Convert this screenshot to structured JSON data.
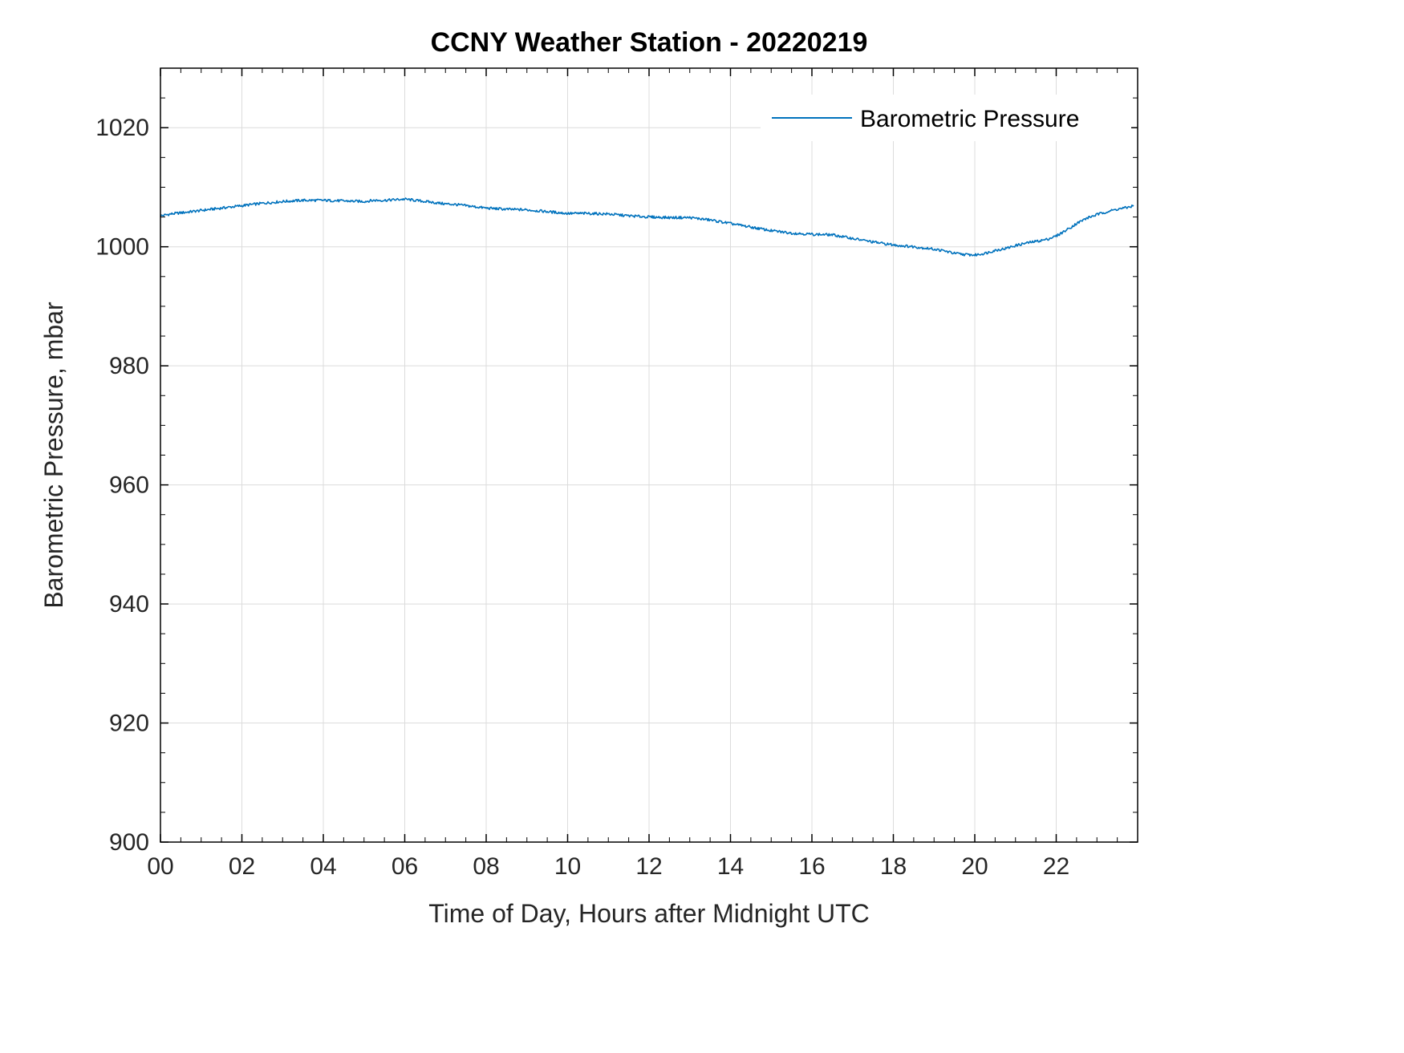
{
  "chart_data": {
    "type": "line",
    "title": "CCNY Weather Station - 20220219",
    "xlabel": "Time of Day, Hours after Midnight UTC",
    "ylabel": "Barometric Pressure, mbar",
    "xlim": [
      0,
      24
    ],
    "ylim": [
      900,
      1030
    ],
    "x_ticks": [
      0,
      2,
      4,
      6,
      8,
      10,
      12,
      14,
      16,
      18,
      20,
      22
    ],
    "x_tick_labels": [
      "00",
      "02",
      "04",
      "06",
      "08",
      "10",
      "12",
      "14",
      "16",
      "18",
      "20",
      "22"
    ],
    "y_ticks": [
      900,
      920,
      940,
      960,
      980,
      1000,
      1020
    ],
    "y_tick_labels": [
      "900",
      "920",
      "940",
      "960",
      "980",
      "1000",
      "1020"
    ],
    "x_minor_step": 0.5,
    "y_minor_step": 5,
    "grid": true,
    "legend": {
      "position": "top-right",
      "entries": [
        {
          "label": "Barometric Pressure",
          "color": "#0072BD"
        }
      ]
    },
    "noise_mbar": 0.22,
    "series": [
      {
        "name": "Barometric Pressure",
        "color": "#0072BD",
        "points": [
          [
            0.0,
            1005.2
          ],
          [
            0.25,
            1005.5
          ],
          [
            0.5,
            1005.7
          ],
          [
            0.75,
            1005.9
          ],
          [
            1.0,
            1006.1
          ],
          [
            1.5,
            1006.5
          ],
          [
            2.0,
            1006.9
          ],
          [
            2.5,
            1007.3
          ],
          [
            3.0,
            1007.6
          ],
          [
            3.5,
            1007.8
          ],
          [
            4.0,
            1007.8
          ],
          [
            4.5,
            1007.7
          ],
          [
            5.0,
            1007.6
          ],
          [
            5.25,
            1007.8
          ],
          [
            5.5,
            1007.8
          ],
          [
            5.75,
            1007.9
          ],
          [
            6.0,
            1008.0
          ],
          [
            6.25,
            1007.8
          ],
          [
            6.5,
            1007.6
          ],
          [
            6.75,
            1007.4
          ],
          [
            7.0,
            1007.2
          ],
          [
            7.25,
            1007.1
          ],
          [
            7.5,
            1006.9
          ],
          [
            7.75,
            1006.7
          ],
          [
            8.0,
            1006.5
          ],
          [
            8.5,
            1006.3
          ],
          [
            9.0,
            1006.2
          ],
          [
            9.5,
            1005.9
          ],
          [
            10.0,
            1005.6
          ],
          [
            10.5,
            1005.6
          ],
          [
            11.0,
            1005.5
          ],
          [
            11.5,
            1005.2
          ],
          [
            12.0,
            1005.0
          ],
          [
            12.5,
            1004.9
          ],
          [
            13.0,
            1004.9
          ],
          [
            13.25,
            1004.7
          ],
          [
            13.5,
            1004.5
          ],
          [
            14.0,
            1003.9
          ],
          [
            14.5,
            1003.3
          ],
          [
            15.0,
            1002.7
          ],
          [
            15.5,
            1002.3
          ],
          [
            16.0,
            1002.1
          ],
          [
            16.5,
            1002.0
          ],
          [
            17.0,
            1001.4
          ],
          [
            17.5,
            1000.8
          ],
          [
            18.0,
            1000.3
          ],
          [
            18.5,
            1000.0
          ],
          [
            19.0,
            999.6
          ],
          [
            19.25,
            999.3
          ],
          [
            19.5,
            998.9
          ],
          [
            19.75,
            998.7
          ],
          [
            20.0,
            998.6
          ],
          [
            20.25,
            998.9
          ],
          [
            20.5,
            999.4
          ],
          [
            20.75,
            999.7
          ],
          [
            21.0,
            1000.2
          ],
          [
            21.25,
            1000.6
          ],
          [
            21.5,
            1000.9
          ],
          [
            21.75,
            1001.2
          ],
          [
            22.0,
            1001.8
          ],
          [
            22.25,
            1002.8
          ],
          [
            22.5,
            1003.9
          ],
          [
            22.75,
            1004.8
          ],
          [
            23.0,
            1005.4
          ],
          [
            23.25,
            1005.9
          ],
          [
            23.5,
            1006.3
          ],
          [
            23.75,
            1006.6
          ],
          [
            23.9,
            1006.9
          ]
        ]
      }
    ],
    "colors": {
      "line": "#0072BD",
      "grid": "#dcdcdc",
      "axis": "#000000",
      "tick_text": "#262626",
      "label_text": "#262626",
      "title_text": "#000000",
      "background": "#ffffff"
    }
  }
}
